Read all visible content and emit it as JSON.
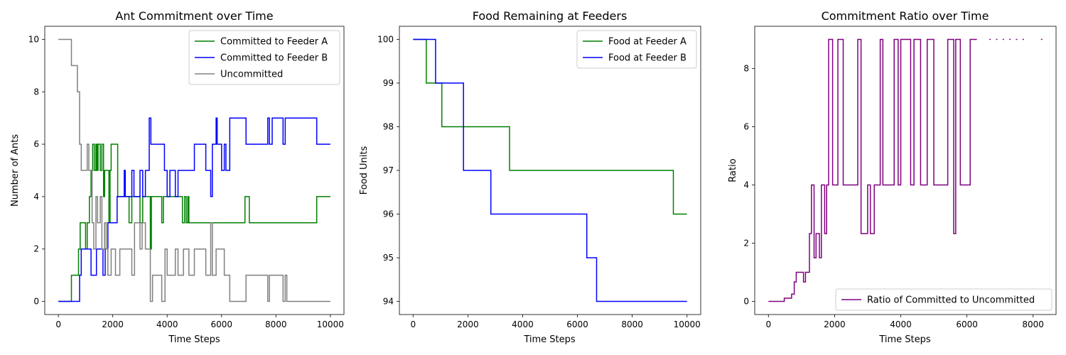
{
  "chart_data": [
    {
      "type": "line",
      "title": "Ant Commitment over Time",
      "xlabel": "Time Steps",
      "ylabel": "Number of Ants",
      "xlim": [
        -500,
        10500
      ],
      "ylim": [
        -0.5,
        10.5
      ],
      "xticks": [
        0,
        2000,
        4000,
        6000,
        8000,
        10000
      ],
      "yticks": [
        0,
        2,
        4,
        6,
        8,
        10
      ],
      "grid": false,
      "legend": "top-right",
      "series": [
        {
          "name": "Committed to Feeder A",
          "color": "#008000",
          "step": true,
          "points": [
            [
              0,
              0
            ],
            [
              480,
              1
            ],
            [
              740,
              2
            ],
            [
              800,
              3
            ],
            [
              1000,
              2
            ],
            [
              1060,
              3
            ],
            [
              1140,
              4
            ],
            [
              1200,
              5
            ],
            [
              1260,
              6
            ],
            [
              1320,
              5
            ],
            [
              1380,
              6
            ],
            [
              1420,
              5
            ],
            [
              1460,
              6
            ],
            [
              1540,
              5
            ],
            [
              1600,
              6
            ],
            [
              1660,
              4
            ],
            [
              1700,
              5
            ],
            [
              1860,
              3
            ],
            [
              1900,
              5
            ],
            [
              1940,
              6
            ],
            [
              2180,
              4
            ],
            [
              2600,
              3
            ],
            [
              2700,
              4
            ],
            [
              3000,
              3
            ],
            [
              3100,
              4
            ],
            [
              3380,
              2
            ],
            [
              3420,
              4
            ],
            [
              3800,
              3
            ],
            [
              3860,
              4
            ],
            [
              4560,
              3
            ],
            [
              4640,
              4
            ],
            [
              4700,
              3
            ],
            [
              4760,
              4
            ],
            [
              4800,
              3
            ],
            [
              6860,
              4
            ],
            [
              7020,
              3
            ],
            [
              9500,
              4
            ],
            [
              10000,
              4
            ]
          ]
        },
        {
          "name": "Committed to Feeder B",
          "color": "#0000ff",
          "step": true,
          "points": [
            [
              0,
              0
            ],
            [
              780,
              1
            ],
            [
              840,
              2
            ],
            [
              1200,
              1
            ],
            [
              1400,
              2
            ],
            [
              1640,
              1
            ],
            [
              1720,
              2
            ],
            [
              1820,
              3
            ],
            [
              2160,
              4
            ],
            [
              2420,
              5
            ],
            [
              2460,
              4
            ],
            [
              2700,
              5
            ],
            [
              2780,
              4
            ],
            [
              3000,
              5
            ],
            [
              3100,
              4
            ],
            [
              3200,
              5
            ],
            [
              3340,
              7
            ],
            [
              3400,
              6
            ],
            [
              3900,
              5
            ],
            [
              4000,
              4
            ],
            [
              4100,
              5
            ],
            [
              4300,
              4
            ],
            [
              4400,
              5
            ],
            [
              5000,
              6
            ],
            [
              5420,
              5
            ],
            [
              5600,
              4
            ],
            [
              5660,
              6
            ],
            [
              5800,
              7
            ],
            [
              5840,
              6
            ],
            [
              6000,
              5
            ],
            [
              6100,
              6
            ],
            [
              6160,
              5
            ],
            [
              6300,
              7
            ],
            [
              6900,
              6
            ],
            [
              7700,
              7
            ],
            [
              7760,
              6
            ],
            [
              7860,
              7
            ],
            [
              8260,
              6
            ],
            [
              8340,
              7
            ],
            [
              9500,
              6
            ],
            [
              10000,
              6
            ]
          ]
        },
        {
          "name": "Uncommitted",
          "color": "#808080",
          "step": true,
          "points": [
            [
              0,
              10
            ],
            [
              480,
              9
            ],
            [
              700,
              8
            ],
            [
              780,
              6
            ],
            [
              840,
              5
            ],
            [
              1060,
              6
            ],
            [
              1120,
              5
            ],
            [
              1240,
              3
            ],
            [
              1300,
              2
            ],
            [
              1380,
              4
            ],
            [
              1440,
              3
            ],
            [
              1540,
              4
            ],
            [
              1600,
              2
            ],
            [
              1700,
              3
            ],
            [
              1760,
              2
            ],
            [
              1820,
              1
            ],
            [
              1940,
              2
            ],
            [
              2100,
              1
            ],
            [
              2260,
              2
            ],
            [
              2700,
              1
            ],
            [
              2800,
              3
            ],
            [
              3000,
              2
            ],
            [
              3080,
              3
            ],
            [
              3200,
              2
            ],
            [
              3380,
              0
            ],
            [
              3460,
              1
            ],
            [
              3800,
              0
            ],
            [
              3920,
              2
            ],
            [
              4000,
              1
            ],
            [
              4300,
              2
            ],
            [
              4400,
              1
            ],
            [
              4600,
              2
            ],
            [
              4800,
              1
            ],
            [
              5000,
              2
            ],
            [
              5420,
              1
            ],
            [
              5600,
              3
            ],
            [
              5660,
              1
            ],
            [
              5800,
              2
            ],
            [
              6100,
              1
            ],
            [
              6300,
              0
            ],
            [
              6900,
              1
            ],
            [
              7700,
              0
            ],
            [
              7760,
              1
            ],
            [
              8260,
              0
            ],
            [
              8340,
              1
            ],
            [
              8400,
              0
            ],
            [
              10000,
              0
            ]
          ]
        }
      ]
    },
    {
      "type": "line",
      "title": "Food Remaining at Feeders",
      "xlabel": "Time Steps",
      "ylabel": "Food Units",
      "xlim": [
        -500,
        10500
      ],
      "ylim": [
        93.7,
        100.3
      ],
      "xticks": [
        0,
        2000,
        4000,
        6000,
        8000,
        10000
      ],
      "yticks": [
        94,
        95,
        96,
        97,
        98,
        99,
        100
      ],
      "grid": false,
      "legend": "top-right",
      "series": [
        {
          "name": "Food at Feeder A",
          "color": "#008000",
          "step": true,
          "points": [
            [
              0,
              100
            ],
            [
              480,
              99
            ],
            [
              1050,
              98
            ],
            [
              3520,
              97
            ],
            [
              9500,
              96
            ],
            [
              10000,
              96
            ]
          ]
        },
        {
          "name": "Food at Feeder B",
          "color": "#0000ff",
          "step": true,
          "points": [
            [
              0,
              100
            ],
            [
              820,
              99
            ],
            [
              1840,
              97
            ],
            [
              2840,
              96
            ],
            [
              6340,
              95
            ],
            [
              6700,
              94
            ],
            [
              10000,
              94
            ]
          ]
        }
      ]
    },
    {
      "type": "line",
      "title": "Commitment Ratio over Time",
      "xlabel": "Time Steps",
      "ylabel": "Ratio",
      "xlim": [
        -414,
        8694
      ],
      "ylim": [
        -0.45,
        9.45
      ],
      "xticks": [
        0,
        2000,
        4000,
        6000,
        8000
      ],
      "yticks": [
        0,
        2,
        4,
        6,
        8
      ],
      "grid": false,
      "legend": "bottom-right",
      "series": [
        {
          "name": "Ratio of Committed to Uncommitted",
          "color": "#800080",
          "step": true,
          "points": [
            [
              0,
              0
            ],
            [
              480,
              0.11
            ],
            [
              700,
              0.25
            ],
            [
              780,
              0.67
            ],
            [
              840,
              1
            ],
            [
              1060,
              0.67
            ],
            [
              1120,
              1
            ],
            [
              1240,
              2.33
            ],
            [
              1300,
              4
            ],
            [
              1380,
              1.5
            ],
            [
              1440,
              2.33
            ],
            [
              1540,
              1.5
            ],
            [
              1600,
              4
            ],
            [
              1700,
              2.33
            ],
            [
              1760,
              4
            ],
            [
              1820,
              9
            ],
            [
              1940,
              4
            ],
            [
              2100,
              9
            ],
            [
              2260,
              4
            ],
            [
              2700,
              9
            ],
            [
              2800,
              2.33
            ],
            [
              3000,
              4
            ],
            [
              3080,
              2.33
            ],
            [
              3200,
              4
            ],
            [
              3380,
              9
            ],
            [
              3460,
              4
            ],
            [
              3800,
              9
            ],
            [
              3920,
              4
            ],
            [
              4000,
              9
            ],
            [
              4300,
              4
            ],
            [
              4400,
              9
            ],
            [
              4600,
              4
            ],
            [
              4800,
              9
            ],
            [
              5000,
              4
            ],
            [
              5420,
              9
            ],
            [
              5600,
              2.33
            ],
            [
              5660,
              9
            ],
            [
              5800,
              4
            ],
            [
              6100,
              9
            ],
            [
              6300,
              9
            ]
          ],
          "dots": [
            [
              6700,
              9
            ],
            [
              6900,
              9
            ],
            [
              7100,
              9
            ],
            [
              7300,
              9
            ],
            [
              7500,
              9
            ],
            [
              7700,
              9
            ],
            [
              8260,
              9
            ]
          ]
        }
      ]
    }
  ]
}
